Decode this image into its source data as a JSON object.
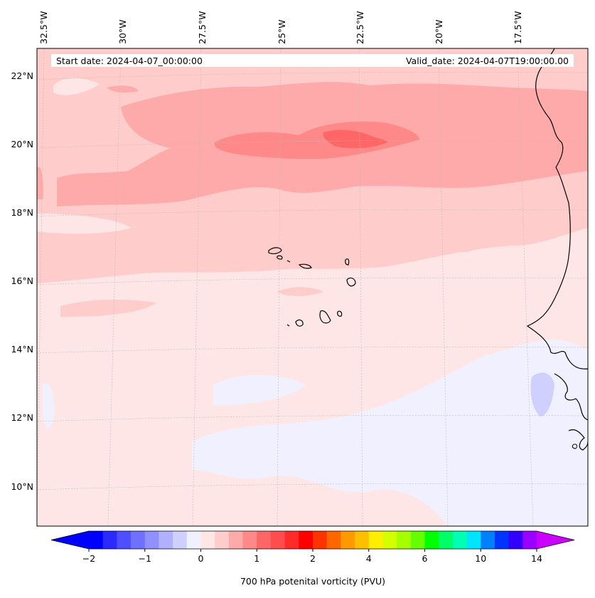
{
  "header": {
    "start_date": "Start date: 2024-04-07_00:00:00",
    "valid_date": "Valid_date: 2024-04-07T19:00:00.00"
  },
  "map": {
    "projection_hint": "conic",
    "lon_labels": [
      "32.5°W",
      "30°W",
      "27.5°W",
      "25°W",
      "22.5°W",
      "20°W",
      "17.5°W"
    ],
    "lat_labels": [
      "22°N",
      "20°N",
      "18°N",
      "16°N",
      "14°N",
      "12°N",
      "10°N"
    ],
    "gridlines": true
  },
  "colorbar": {
    "label": "700 hPa potenital vorticity (PVU)",
    "tick_labels": [
      "−2",
      "−1",
      "0",
      "1",
      "2",
      "4",
      "6",
      "10",
      "14"
    ],
    "colors": [
      "#0000ff",
      "#2a2aff",
      "#4f4fff",
      "#7070ff",
      "#9090ff",
      "#b0b0ff",
      "#d0d0ff",
      "#f0f0ff",
      "#ffe6e6",
      "#ffcccc",
      "#ffaaaa",
      "#ff8888",
      "#ff6666",
      "#ff4d4d",
      "#ff2a2a",
      "#ff0000",
      "#ff3300",
      "#ff6600",
      "#ff9900",
      "#ffbf00",
      "#ffee00",
      "#d4ff00",
      "#a6ff00",
      "#66ff00",
      "#00ff00",
      "#00ff66",
      "#00ffb3",
      "#00e5ff",
      "#0080ff",
      "#0033ff",
      "#3300ff",
      "#9900ff"
    ],
    "extend_min_color": "#0000ff",
    "extend_max_color": "#cc00ff"
  }
}
